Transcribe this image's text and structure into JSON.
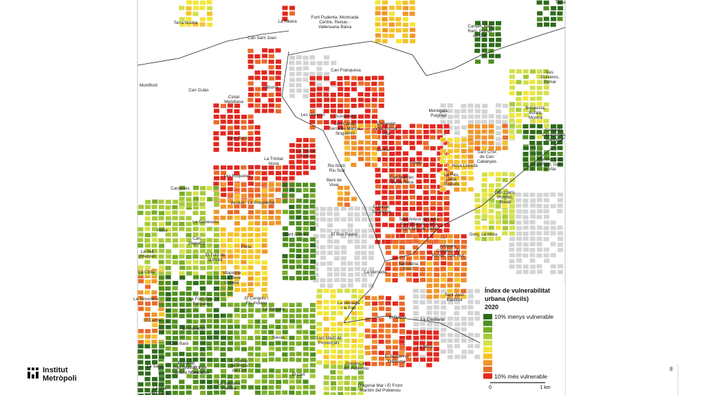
{
  "map_labels": [
    [
      "Terra Nostra"
    ],
    [
      "La Ribera"
    ],
    [
      "Font Pudenta, Montcada",
      "Centre, Reixac -",
      "Vallensana Baixa"
    ],
    [
      "Can Sant Joan"
    ],
    [
      "Canyet, Mas",
      "Ram, Pomar",
      "de Dalt"
    ],
    [
      "Tiana"
    ],
    [
      "Can Franquesa"
    ],
    [
      "Montflorit"
    ],
    [
      "Can Culàs"
    ],
    [
      "Valbona"
    ],
    [
      "Ciutat",
      "Meridiana"
    ],
    [
      "Les",
      "Guixeres,",
      "Pomar"
    ],
    [
      "Bonavista,",
      "Bufalà,",
      "Morera"
    ],
    [
      "Guinardera"
    ],
    [
      "Can Calvet,",
      "Serra de Marina,",
      "Singuerlín"
    ],
    [
      "Montigalà,",
      "Puigfred"
    ],
    [
      "Les Oliveres"
    ],
    [
      "Cementiri",
      "Vell, Pomar",
      "Alta"
    ],
    [
      "Torre Baró"
    ],
    [
      "Canyadó,",
      "Casagemes,",
      "Manresà"
    ],
    [
      "Centre"
    ],
    [
      "Sant Crist",
      "de Can",
      "Cabanyes"
    ],
    [
      "Centre, Coll",
      "i Pujol, Dalt",
      "la Vila"
    ],
    [
      "La Trinitat",
      "Vella"
    ],
    [
      "La Trinitat",
      "Nova"
    ],
    [
      "Fondo"
    ],
    [
      "Nova Lloreda"
    ],
    [
      "Riu Nord,",
      "Riu Sud"
    ],
    [
      "Les Roquetes"
    ],
    [
      "La Pau,",
      "Llefià,",
      "Sistrells"
    ],
    [
      "Can Mariner,",
      "Santa Rosa"
    ],
    [
      "Baró de",
      "Viver"
    ],
    [
      "Canyelles"
    ],
    [
      "Can Claris,",
      "Progrés,",
      "Raval"
    ],
    [
      "Verdun"
    ],
    [
      "La Prosperitat"
    ],
    [
      "El Raval,",
      "Safaretjos"
    ],
    [
      "Sant Antoni de Llefià,",
      "Sant Joan de Llefià,",
      "Sant Mori de Llefià"
    ],
    [
      "La Guineueta"
    ],
    [
      "Horta"
    ],
    [
      "Sant Andreu"
    ],
    [
      "El Bon Pastor"
    ],
    [
      "Gorg, La Mora"
    ],
    [
      "Can",
      "Peguera"
    ],
    [
      "Porta"
    ],
    [
      "Artigues,",
      "Congrés i El",
      "Remei, Sant Roc"
    ],
    [
      "La Vall",
      "d'Hebron"
    ],
    [
      "El Turó de",
      "la Peira"
    ],
    [
      "Sant Adrià",
      "Nord"
    ],
    [
      "La Clota"
    ],
    [
      "Vilapicina",
      "i La Torre",
      "Llobeta"
    ],
    [
      "La Verneda"
    ],
    [
      "La Teixonera"
    ],
    [
      "Sant Joan",
      "Baptista"
    ],
    [
      "El Congrés i",
      "Els Indians"
    ],
    [
      "La Font d'en",
      "Fargues"
    ],
    [
      "La Verneda",
      "i la Pau"
    ],
    [
      "La Sagrera"
    ],
    [
      "El Carmet"
    ],
    [
      "El Besòs"
    ],
    [
      "La Catalana"
    ],
    [
      "El Guinardó"
    ],
    [
      "Sant Martí de",
      "Provençals"
    ],
    [
      "Navas"
    ],
    [
      "Can Baró"
    ],
    [
      "La Mina"
    ],
    [
      "Provençals",
      "del Poblenou"
    ],
    [
      "El Besòs i el",
      "Maresme"
    ],
    [
      "El Camp",
      "de l'Arpa",
      "del Clot"
    ],
    [
      "El Camp",
      "d'en Grassot i",
      "Gràcia Nova"
    ],
    [
      "La Salut"
    ],
    [
      "El Baix",
      "Guinardó"
    ],
    [
      "El Clot"
    ],
    [
      "La Sagrada",
      "Família"
    ],
    [
      "La Vila",
      "de Gràcia"
    ],
    [
      "Diagonal Mar i El Front",
      "Marítim del Poblenou"
    ]
  ],
  "legend": {
    "title": [
      "Índex de vulnerabilitat",
      "urbana (decils)",
      "2020"
    ],
    "colors": [
      "#2e6b1c",
      "#4f8e1f",
      "#79ac2a",
      "#a6c93b",
      "#d3e04c",
      "#f3e63a",
      "#f5c22b",
      "#f0962b",
      "#ea6a29",
      "#e2281f"
    ],
    "low_label": "10% menys vulnerable",
    "high_label": "10% més vulnerable"
  },
  "scale": {
    "start": "0",
    "end": "1 km"
  },
  "logo": [
    "Institut",
    "Metròpoli"
  ],
  "page_number": "8"
}
